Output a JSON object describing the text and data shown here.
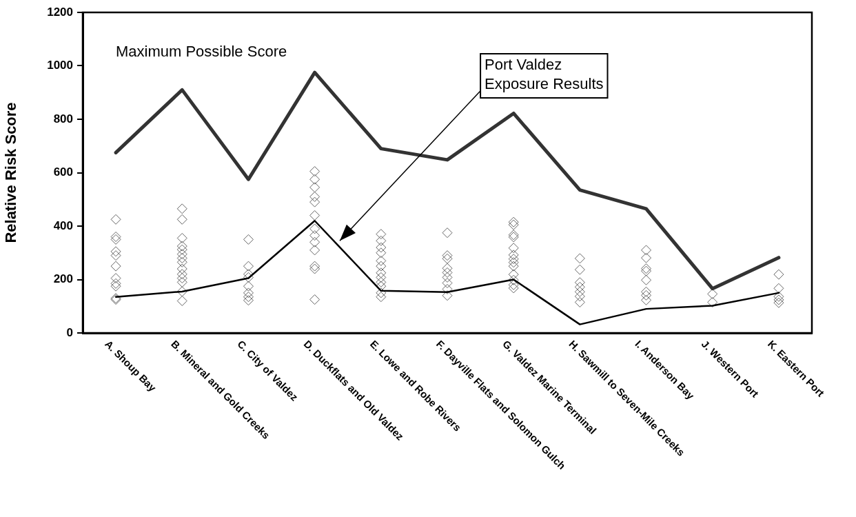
{
  "chart_data": {
    "type": "line",
    "ylabel": "Relative Risk Score",
    "categories": [
      "A. Shoup Bay",
      "B. Mineral and Gold Creeks",
      "C. City of Valdez",
      "D. Duckflats and Old Valdez",
      "E. Lowe and Robe Rivers",
      "F. Dayville Flats and Solomon Gulch",
      "G. Valdez Marine Terminal",
      "H. Sawmill to Seven-Mile Creeks",
      "I. Anderson Bay",
      "J. Western Port",
      "K. Eastern Port"
    ],
    "ylim": [
      0,
      1200
    ],
    "yticks": [
      0,
      200,
      400,
      600,
      800,
      1000,
      1200
    ],
    "grid": false,
    "legend": false,
    "annotations": [
      "Maximum Possible Score",
      "Port Valdez Exposure Results"
    ],
    "series": [
      {
        "color": "#333333",
        "marker": "none",
        "values": [
          675,
          910,
          575,
          975,
          690,
          648,
          822,
          535,
          465,
          166,
          282
        ]
      },
      {
        "color": "#000000",
        "marker": "none",
        "values": [
          135,
          155,
          205,
          420,
          158,
          153,
          200,
          32,
          90,
          102,
          150
        ]
      },
      {
        "type": "scatter",
        "color": "#666666",
        "marker": "diamond",
        "x": [
          "A. Shoup Bay",
          "A. Shoup Bay",
          "A. Shoup Bay",
          "A. Shoup Bay",
          "A. Shoup Bay",
          "A. Shoup Bay",
          "A. Shoup Bay",
          "A. Shoup Bay",
          "A. Shoup Bay",
          "A. Shoup Bay",
          "A. Shoup Bay",
          "B. Mineral and Gold Creeks",
          "B. Mineral and Gold Creeks",
          "B. Mineral and Gold Creeks",
          "B. Mineral and Gold Creeks",
          "B. Mineral and Gold Creeks",
          "B. Mineral and Gold Creeks",
          "B. Mineral and Gold Creeks",
          "B. Mineral and Gold Creeks",
          "B. Mineral and Gold Creeks",
          "B. Mineral and Gold Creeks",
          "B. Mineral and Gold Creeks",
          "B. Mineral and Gold Creeks",
          "B. Mineral and Gold Creeks",
          "B. Mineral and Gold Creeks",
          "C. City of Valdez",
          "C. City of Valdez",
          "C. City of Valdez",
          "C. City of Valdez",
          "C. City of Valdez",
          "C. City of Valdez",
          "C. City of Valdez",
          "C. City of Valdez",
          "D. Duckflats and Old Valdez",
          "D. Duckflats and Old Valdez",
          "D. Duckflats and Old Valdez",
          "D. Duckflats and Old Valdez",
          "D. Duckflats and Old Valdez",
          "D. Duckflats and Old Valdez",
          "D. Duckflats and Old Valdez",
          "D. Duckflats and Old Valdez",
          "D. Duckflats and Old Valdez",
          "D. Duckflats and Old Valdez",
          "D. Duckflats and Old Valdez",
          "D. Duckflats and Old Valdez",
          "D. Duckflats and Old Valdez",
          "E. Lowe and Robe Rivers",
          "E. Lowe and Robe Rivers",
          "E. Lowe and Robe Rivers",
          "E. Lowe and Robe Rivers",
          "E. Lowe and Robe Rivers",
          "E. Lowe and Robe Rivers",
          "E. Lowe and Robe Rivers",
          "E. Lowe and Robe Rivers",
          "E. Lowe and Robe Rivers",
          "E. Lowe and Robe Rivers",
          "E. Lowe and Robe Rivers",
          "E. Lowe and Robe Rivers",
          "F. Dayville Flats and Solomon Gulch",
          "F. Dayville Flats and Solomon Gulch",
          "F. Dayville Flats and Solomon Gulch",
          "F. Dayville Flats and Solomon Gulch",
          "F. Dayville Flats and Solomon Gulch",
          "F. Dayville Flats and Solomon Gulch",
          "F. Dayville Flats and Solomon Gulch",
          "F. Dayville Flats and Solomon Gulch",
          "F. Dayville Flats and Solomon Gulch",
          "G. Valdez Marine Terminal",
          "G. Valdez Marine Terminal",
          "G. Valdez Marine Terminal",
          "G. Valdez Marine Terminal",
          "G. Valdez Marine Terminal",
          "G. Valdez Marine Terminal",
          "G. Valdez Marine Terminal",
          "G. Valdez Marine Terminal",
          "G. Valdez Marine Terminal",
          "G. Valdez Marine Terminal",
          "G. Valdez Marine Terminal",
          "G. Valdez Marine Terminal",
          "G. Valdez Marine Terminal",
          "H. Sawmill to Seven-Mile Creeks",
          "H. Sawmill to Seven-Mile Creeks",
          "H. Sawmill to Seven-Mile Creeks",
          "H. Sawmill to Seven-Mile Creeks",
          "H. Sawmill to Seven-Mile Creeks",
          "H. Sawmill to Seven-Mile Creeks",
          "H. Sawmill to Seven-Mile Creeks",
          "I. Anderson Bay",
          "I. Anderson Bay",
          "I. Anderson Bay",
          "I. Anderson Bay",
          "I. Anderson Bay",
          "I. Anderson Bay",
          "I. Anderson Bay",
          "I. Anderson Bay",
          "J. Western Port",
          "J. Western Port",
          "K. Eastern Port",
          "K. Eastern Port",
          "K. Eastern Port",
          "K. Eastern Port",
          "K. Eastern Port"
        ],
        "values": [
          425,
          360,
          350,
          305,
          290,
          250,
          205,
          185,
          175,
          130,
          125,
          465,
          425,
          355,
          325,
          312,
          295,
          280,
          265,
          240,
          220,
          205,
          190,
          155,
          120,
          350,
          250,
          220,
          208,
          175,
          150,
          135,
          122,
          605,
          575,
          545,
          510,
          490,
          440,
          390,
          365,
          340,
          310,
          250,
          240,
          125,
          370,
          345,
          320,
          300,
          270,
          250,
          225,
          208,
          190,
          175,
          150,
          135,
          375,
          290,
          278,
          242,
          226,
          208,
          187,
          164,
          140,
          415,
          405,
          367,
          359,
          318,
          292,
          277,
          264,
          250,
          219,
          198,
          180,
          168,
          279,
          237,
          189,
          172,
          154,
          137,
          115,
          310,
          281,
          241,
          232,
          198,
          154,
          141,
          123,
          146,
          115,
          219,
          167,
          136,
          124,
          113
        ]
      }
    ]
  }
}
